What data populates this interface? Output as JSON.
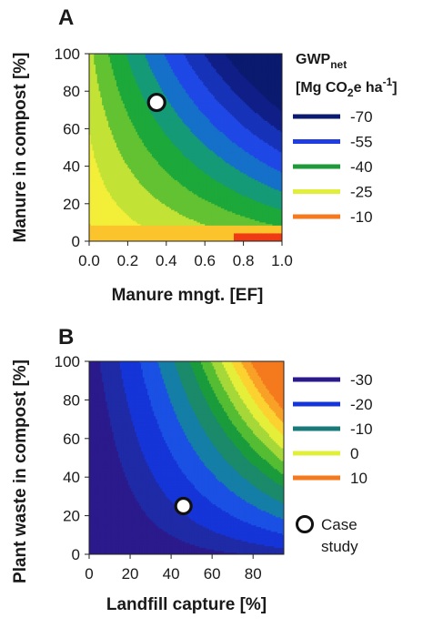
{
  "chart_data": [
    {
      "panel": "A",
      "type": "heatmap",
      "xlabel": "Manure mngt.  [EF]",
      "ylabel": "Manure in compost [%]",
      "xlim": [
        0.0,
        1.0
      ],
      "ylim": [
        0,
        100
      ],
      "xticks": [
        "0.0",
        "0.2",
        "0.4",
        "0.6",
        "0.8",
        "1.0"
      ],
      "yticks": [
        "0",
        "20",
        "40",
        "60",
        "80",
        "100"
      ],
      "legend_title_line1": "GWP",
      "legend_title_sub": "net",
      "legend_title_line2_a": "[Mg CO",
      "legend_title_line2_sub": "2",
      "legend_title_line2_b": "e ha",
      "legend_title_line2_sup": "-1",
      "legend_title_line2_c": "]",
      "legend": [
        {
          "label": "-70",
          "color": "#0a1a6e"
        },
        {
          "label": "-55",
          "color": "#1f3de0"
        },
        {
          "label": "-40",
          "color": "#1f9a3a"
        },
        {
          "label": "-25",
          "color": "#e2ef3a"
        },
        {
          "label": "-10",
          "color": "#f57a1e"
        }
      ],
      "case_study": {
        "x": 0.35,
        "y": 74
      },
      "levels": [
        {
          "min": -999,
          "color": "#0a1a6e"
        },
        {
          "min": -67,
          "color": "#101f88"
        },
        {
          "min": -61,
          "color": "#1733b8"
        },
        {
          "min": -55,
          "color": "#1f48e6"
        },
        {
          "min": -49,
          "color": "#1570c9"
        },
        {
          "min": -43,
          "color": "#159a76"
        },
        {
          "min": -37,
          "color": "#1da83a"
        },
        {
          "min": -31,
          "color": "#62c232"
        },
        {
          "min": -25,
          "color": "#c3e236"
        },
        {
          "min": -19,
          "color": "#f3ee38"
        },
        {
          "min": -14,
          "color": "#fbc42c"
        },
        {
          "min": -9,
          "color": "#f99624"
        },
        {
          "min": -4,
          "color": "#f5791c"
        },
        {
          "min": 1,
          "color": "#ef3b14"
        }
      ]
    },
    {
      "panel": "B",
      "type": "heatmap",
      "xlabel": "Landfill capture [%]",
      "ylabel": "Plant waste in compost [%]",
      "xlim": [
        0,
        95
      ],
      "ylim": [
        0,
        100
      ],
      "xticks": [
        "0",
        "20",
        "40",
        "60",
        "80"
      ],
      "xtick_values": [
        0,
        20,
        40,
        60,
        80
      ],
      "yticks": [
        "0",
        "20",
        "40",
        "60",
        "80",
        "100"
      ],
      "legend": [
        {
          "label": "-30",
          "color": "#2b1a8c"
        },
        {
          "label": "-20",
          "color": "#1535d8"
        },
        {
          "label": "-10",
          "color": "#1a7a7a"
        },
        {
          "label": "0",
          "color": "#e2ef3a"
        },
        {
          "label": "10",
          "color": "#f57a1e"
        }
      ],
      "case_study": {
        "x": 46,
        "y": 25
      },
      "case_study_label_line1": "Case",
      "case_study_label_line2": "study",
      "levels": [
        {
          "min": -999,
          "color": "#2b1a8c"
        },
        {
          "min": -27,
          "color": "#1f2aa6"
        },
        {
          "min": -24,
          "color": "#1535d8"
        },
        {
          "min": -20,
          "color": "#1a50e4"
        },
        {
          "min": -16,
          "color": "#147ea6"
        },
        {
          "min": -12,
          "color": "#1a8a6a"
        },
        {
          "min": -8,
          "color": "#1a9b3c"
        },
        {
          "min": -5,
          "color": "#54bd33"
        },
        {
          "min": -2,
          "color": "#a5d838"
        },
        {
          "min": 1,
          "color": "#e5ef3a"
        },
        {
          "min": 4,
          "color": "#fbd230"
        },
        {
          "min": 7,
          "color": "#f9a026"
        },
        {
          "min": 10,
          "color": "#f57a1e"
        }
      ]
    }
  ]
}
